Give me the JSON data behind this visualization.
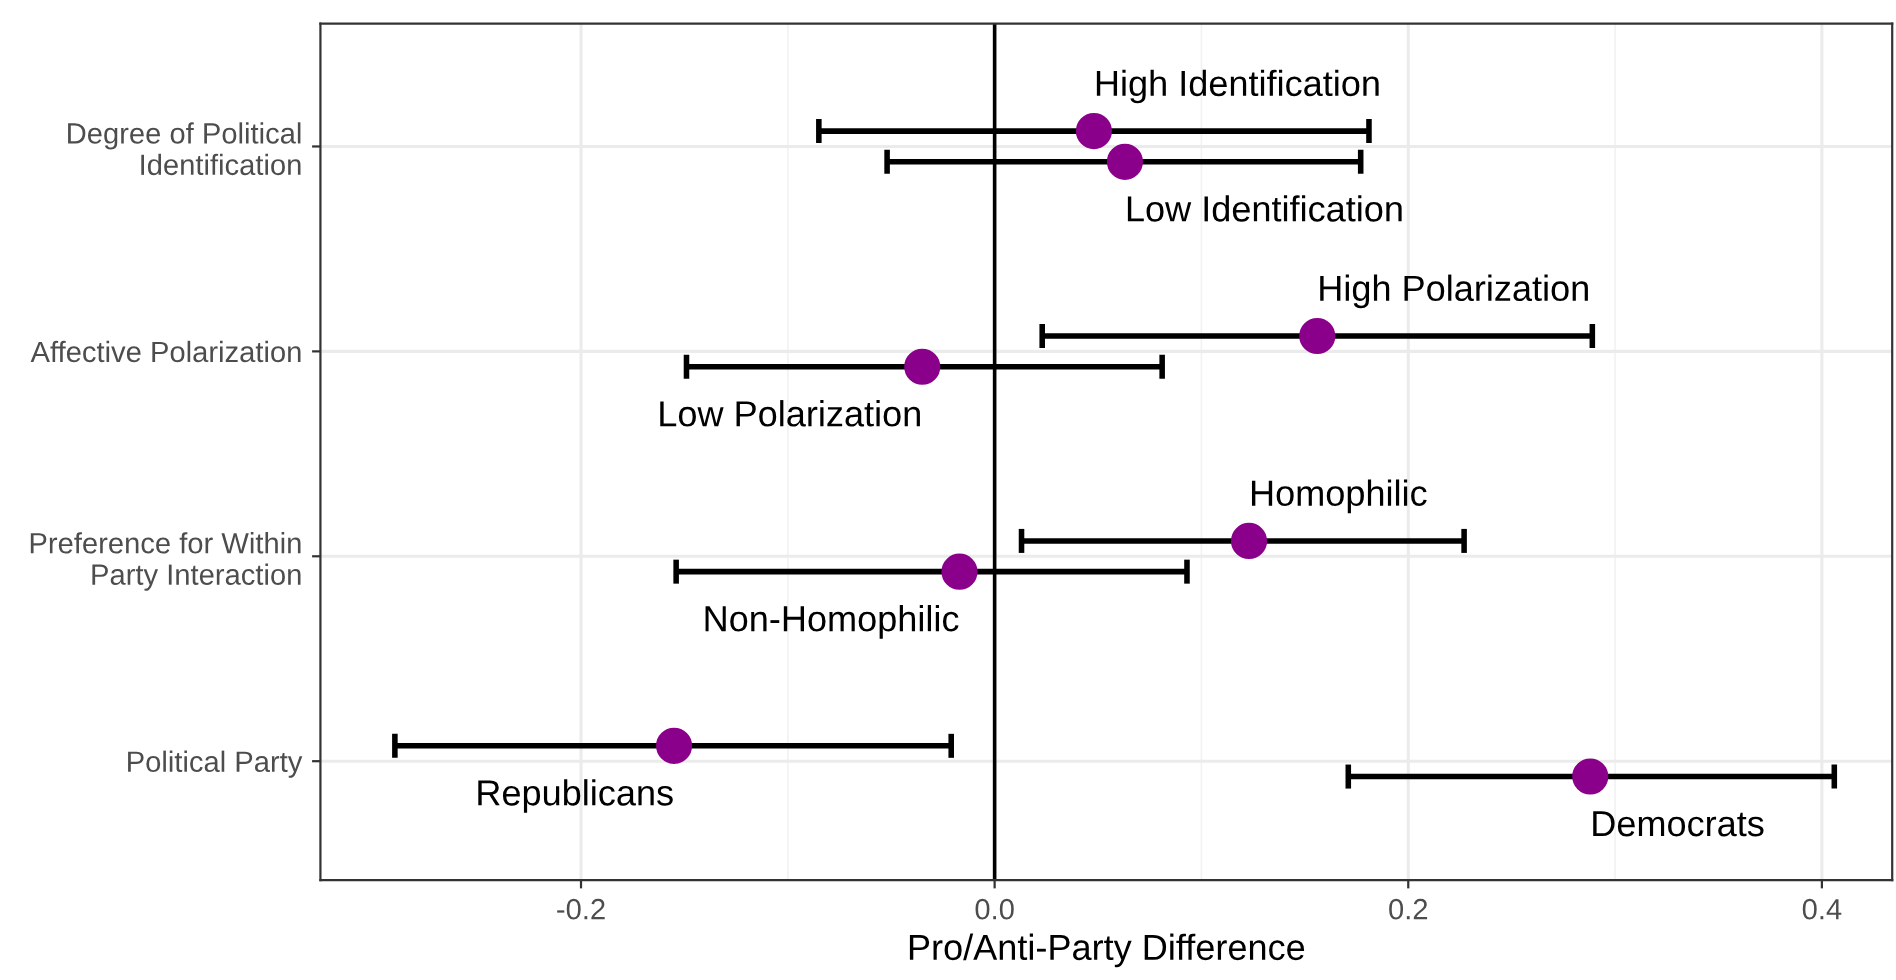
{
  "chart_data": {
    "type": "scatter",
    "orientation": "horizontal",
    "xlabel": "Pro/Anti-Party Difference",
    "categories": [
      "Degree of Political\nIdentification",
      "Affective Polarization",
      "Preference for Within\nParty Interaction",
      "Political Party"
    ],
    "series": [
      {
        "color": "#8b008b",
        "values": [
          0.048,
          0.156,
          0.123,
          -0.155
        ],
        "errors": [
          [
            -0.085,
            0.181
          ],
          [
            0.023,
            0.289
          ],
          [
            0.013,
            0.227
          ],
          [
            -0.29,
            -0.021
          ]
        ],
        "value_labels": [
          "High Identification",
          "High Polarization",
          "Homophilic",
          "Republicans"
        ]
      },
      {
        "color": "#8b008b",
        "values": [
          0.063,
          -0.035,
          -0.017,
          0.288
        ],
        "errors": [
          [
            -0.052,
            0.177
          ],
          [
            -0.149,
            0.081
          ],
          [
            -0.154,
            0.093
          ],
          [
            0.171,
            0.406
          ]
        ],
        "value_labels": [
          "Low Identification",
          "Low Polarization",
          "Non-Homophilic",
          "Democrats"
        ]
      }
    ],
    "xlim": [
      -0.326,
      0.434
    ],
    "xticks": [
      -0.2,
      {
        "value": 0,
        "label": "0.0"
      },
      0.2,
      0.4
    ],
    "ref_lines": [
      {
        "axis": "x",
        "value": 0,
        "color": "#000000"
      }
    ],
    "grid": true,
    "marker": "circle"
  }
}
